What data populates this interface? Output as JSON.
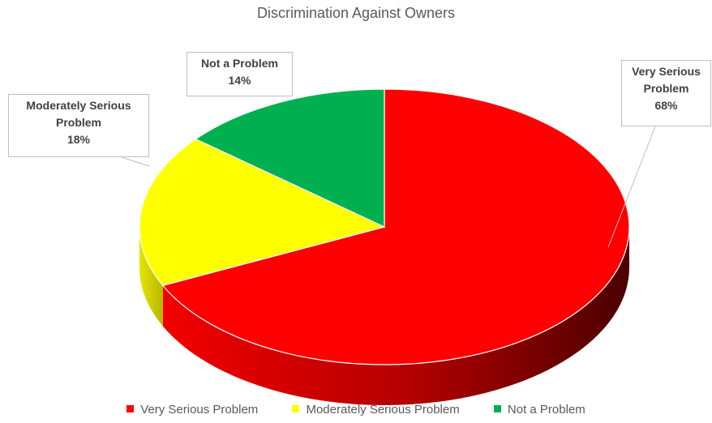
{
  "chart_data": {
    "type": "pie",
    "title": "Discrimination Against Owners",
    "categories": [
      "Very Serious Problem",
      "Moderately Serious Problem",
      "Not a Problem"
    ],
    "values": [
      68,
      18,
      14
    ],
    "labels": [
      {
        "lines": [
          "Very Serious",
          "Problem"
        ],
        "percent": "68%"
      },
      {
        "lines": [
          "Moderately Serious",
          "Problem"
        ],
        "percent": "18%"
      },
      {
        "lines": [
          "Not a Problem"
        ],
        "percent": "14%"
      }
    ],
    "colors": [
      "#ff0000",
      "#ffff00",
      "#00b050"
    ],
    "legend_position": "bottom",
    "style": "3d"
  }
}
